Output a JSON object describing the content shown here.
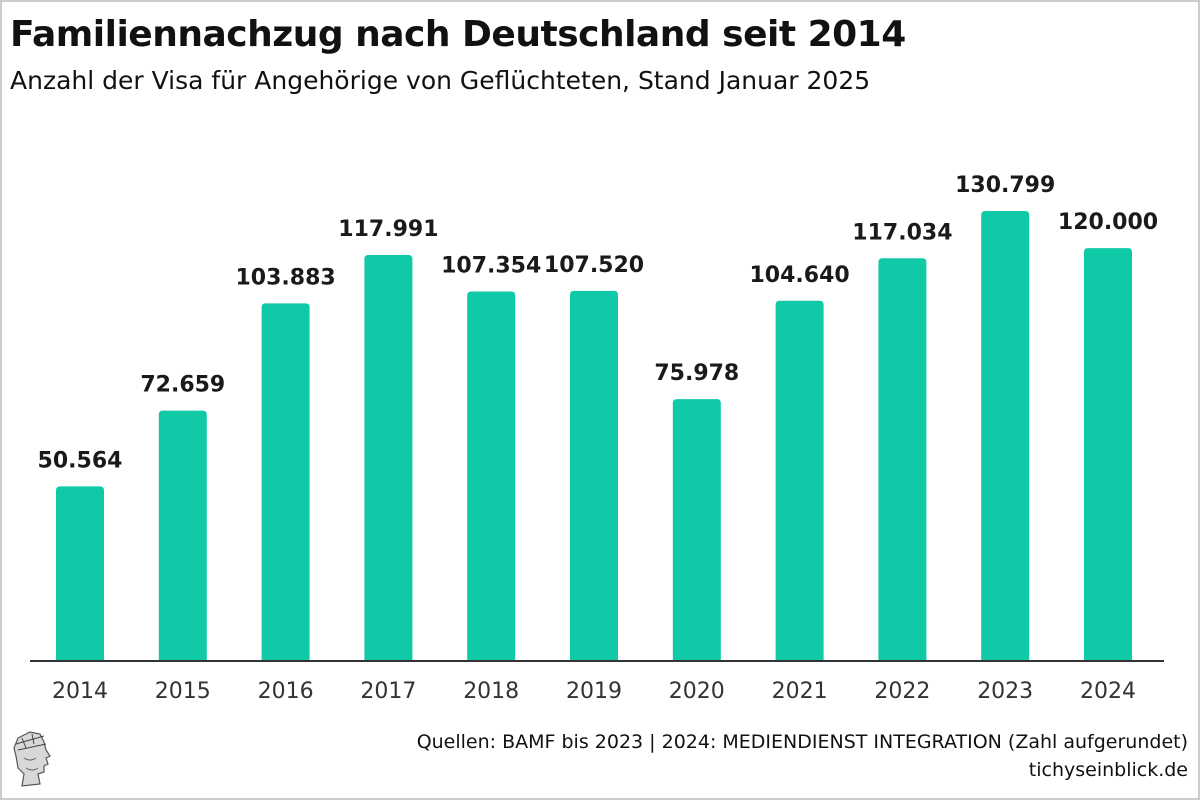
{
  "header": {
    "title": "Familiennachzug nach Deutschland seit 2014",
    "subtitle": "Anzahl der Visa für Angehörige von Geflüchteten, Stand Januar 2025"
  },
  "footer": {
    "source": "Quellen: BAMF bis 2023 | 2024: MEDIENDIENST INTEGRATION (Zahl aufgerundet)",
    "site": "tichyseinblick.de",
    "logo_icon": "hermes-head-logo-icon"
  },
  "colors": {
    "bar": "#10c9a6",
    "axis": "#333333"
  },
  "chart_data": {
    "type": "bar",
    "title": "Familiennachzug nach Deutschland seit 2014",
    "subtitle": "Anzahl der Visa für Angehörige von Geflüchteten, Stand Januar 2025",
    "xlabel": "",
    "ylabel": "",
    "categories": [
      "2014",
      "2015",
      "2016",
      "2017",
      "2018",
      "2019",
      "2020",
      "2021",
      "2022",
      "2023",
      "2024"
    ],
    "values": [
      50564,
      72659,
      103883,
      117991,
      107354,
      107520,
      75978,
      104640,
      117034,
      130799,
      120000
    ],
    "value_labels": [
      "50.564",
      "72.659",
      "103.883",
      "117.991",
      "107.354",
      "107.520",
      "75.978",
      "104.640",
      "117.034",
      "130.799",
      "120.000"
    ],
    "ylim": [
      0,
      130799
    ],
    "grid": false,
    "legend": "none"
  }
}
